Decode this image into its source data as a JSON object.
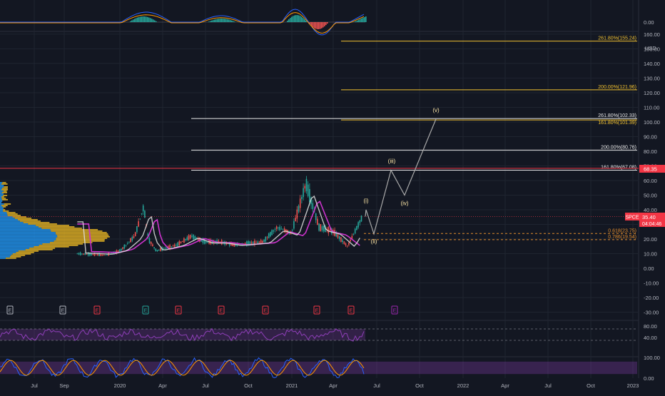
{
  "app": {
    "ticker": "SPCE",
    "price": "35.40",
    "countdown": "04:04:46",
    "currency": "USD",
    "marker_label": "68.35"
  },
  "colors": {
    "background": "#131722",
    "grid": "#1f2430",
    "axis_text": "#b2b5be",
    "price_tag": "#f23645",
    "fib_yellow": "#f0c030",
    "fib_white": "#e8e8e8",
    "fib_dashed": "#e08c2c",
    "red_line": "#f23645",
    "wave_path": "#a9a9a9",
    "candle_up": "#26a69a",
    "candle_down": "#ef5350",
    "ma_pink": "#cc33cc",
    "ma_white": "#e0e0e0",
    "volume_blue": "#2196f3",
    "volume_gold": "#e6b422",
    "rsi": "#8e3fb8",
    "stoch_k": "#2962ff",
    "stoch_d": "#ff9800",
    "earn_red": "#f23645",
    "earn_green": "#26a69a",
    "earn_purple": "#9c27b0",
    "earn_gray": "#b2b5be"
  },
  "chart_data": [
    {
      "type": "line",
      "title": "",
      "series": [],
      "x_ticks": [
        "Jul",
        "Sep",
        "2020",
        "Apr",
        "Jul",
        "Oct",
        "2021",
        "Apr",
        "Jul",
        "Oct",
        "2022",
        "Apr",
        "Jul",
        "Oct",
        "2023"
      ],
      "y_ticks": [
        "160.00",
        "150.00",
        "140.00",
        "130.00",
        "120.00",
        "110.00",
        "100.00",
        "90.00",
        "80.00",
        "70.00",
        "60.00",
        "50.00",
        "40.00",
        "30.00",
        "20.00",
        "10.00",
        "0.00",
        "-10.00",
        "-20.00",
        "-30.00"
      ],
      "ylim": [
        -30,
        160
      ],
      "price_series_estimated": [
        {
          "x": "2019-10",
          "y": 10
        },
        {
          "x": "2019-12",
          "y": 9
        },
        {
          "x": "2020-01",
          "y": 12
        },
        {
          "x": "2020-02",
          "y": 22
        },
        {
          "x": "2020-02-20",
          "y": 42
        },
        {
          "x": "2020-03",
          "y": 20
        },
        {
          "x": "2020-03-18",
          "y": 12
        },
        {
          "x": "2020-05",
          "y": 16
        },
        {
          "x": "2020-06",
          "y": 22
        },
        {
          "x": "2020-07",
          "y": 18
        },
        {
          "x": "2020-08",
          "y": 18
        },
        {
          "x": "2020-09",
          "y": 16
        },
        {
          "x": "2020-10",
          "y": 17
        },
        {
          "x": "2020-11",
          "y": 18
        },
        {
          "x": "2020-12",
          "y": 28
        },
        {
          "x": "2021-01",
          "y": 24
        },
        {
          "x": "2021-02",
          "y": 58
        },
        {
          "x": "2021-03",
          "y": 28
        },
        {
          "x": "2021-04",
          "y": 25
        },
        {
          "x": "2021-05",
          "y": 15
        },
        {
          "x": "2021-06",
          "y": 35
        }
      ],
      "fib_levels": [
        {
          "label": "261.80%(155.24)",
          "value": 155.24,
          "color": "yellow"
        },
        {
          "label": "200.00%(121.96)",
          "value": 121.96,
          "color": "yellow"
        },
        {
          "label": "161.80%(101.39)",
          "value": 101.39,
          "color": "yellow"
        },
        {
          "label": "261.80%(102.33)",
          "value": 102.33,
          "color": "white"
        },
        {
          "label": "200.00%(80.76)",
          "value": 80.76,
          "color": "white"
        },
        {
          "label": "161.80%(67.08)",
          "value": 67.08,
          "color": "white"
        },
        {
          "label": "0.618(23.75)",
          "value": 23.75,
          "color": "dashed"
        },
        {
          "label": "0.786(19.54)",
          "value": 19.54,
          "color": "dashed"
        }
      ],
      "red_line": {
        "value": 68.35,
        "label": "68.35"
      },
      "current_price": 35.4,
      "wave_labels": [
        {
          "label": "(i)",
          "value": 40
        },
        {
          "label": "(ii)",
          "value": 23.5
        },
        {
          "label": "(iii)",
          "value": 67
        },
        {
          "label": "(iv)",
          "value": 50
        },
        {
          "label": "(v)",
          "value": 102
        }
      ],
      "earnings_markers": [
        "E",
        "E",
        "E",
        "E",
        "E",
        "E",
        "E",
        "E",
        "E",
        "E"
      ]
    },
    {
      "type": "line",
      "title": "",
      "series": [],
      "y_ticks": [
        "80.00",
        "40.00"
      ],
      "ylim": [
        0,
        100
      ],
      "bands": [
        70,
        30
      ]
    },
    {
      "type": "line",
      "title": "",
      "series": [],
      "y_ticks": [
        "100.00",
        "0.00"
      ],
      "ylim": [
        0,
        100
      ],
      "bands": [
        80,
        20
      ]
    },
    {
      "type": "line",
      "title": "",
      "series": [],
      "y_ticks": [
        "0.00"
      ]
    }
  ]
}
